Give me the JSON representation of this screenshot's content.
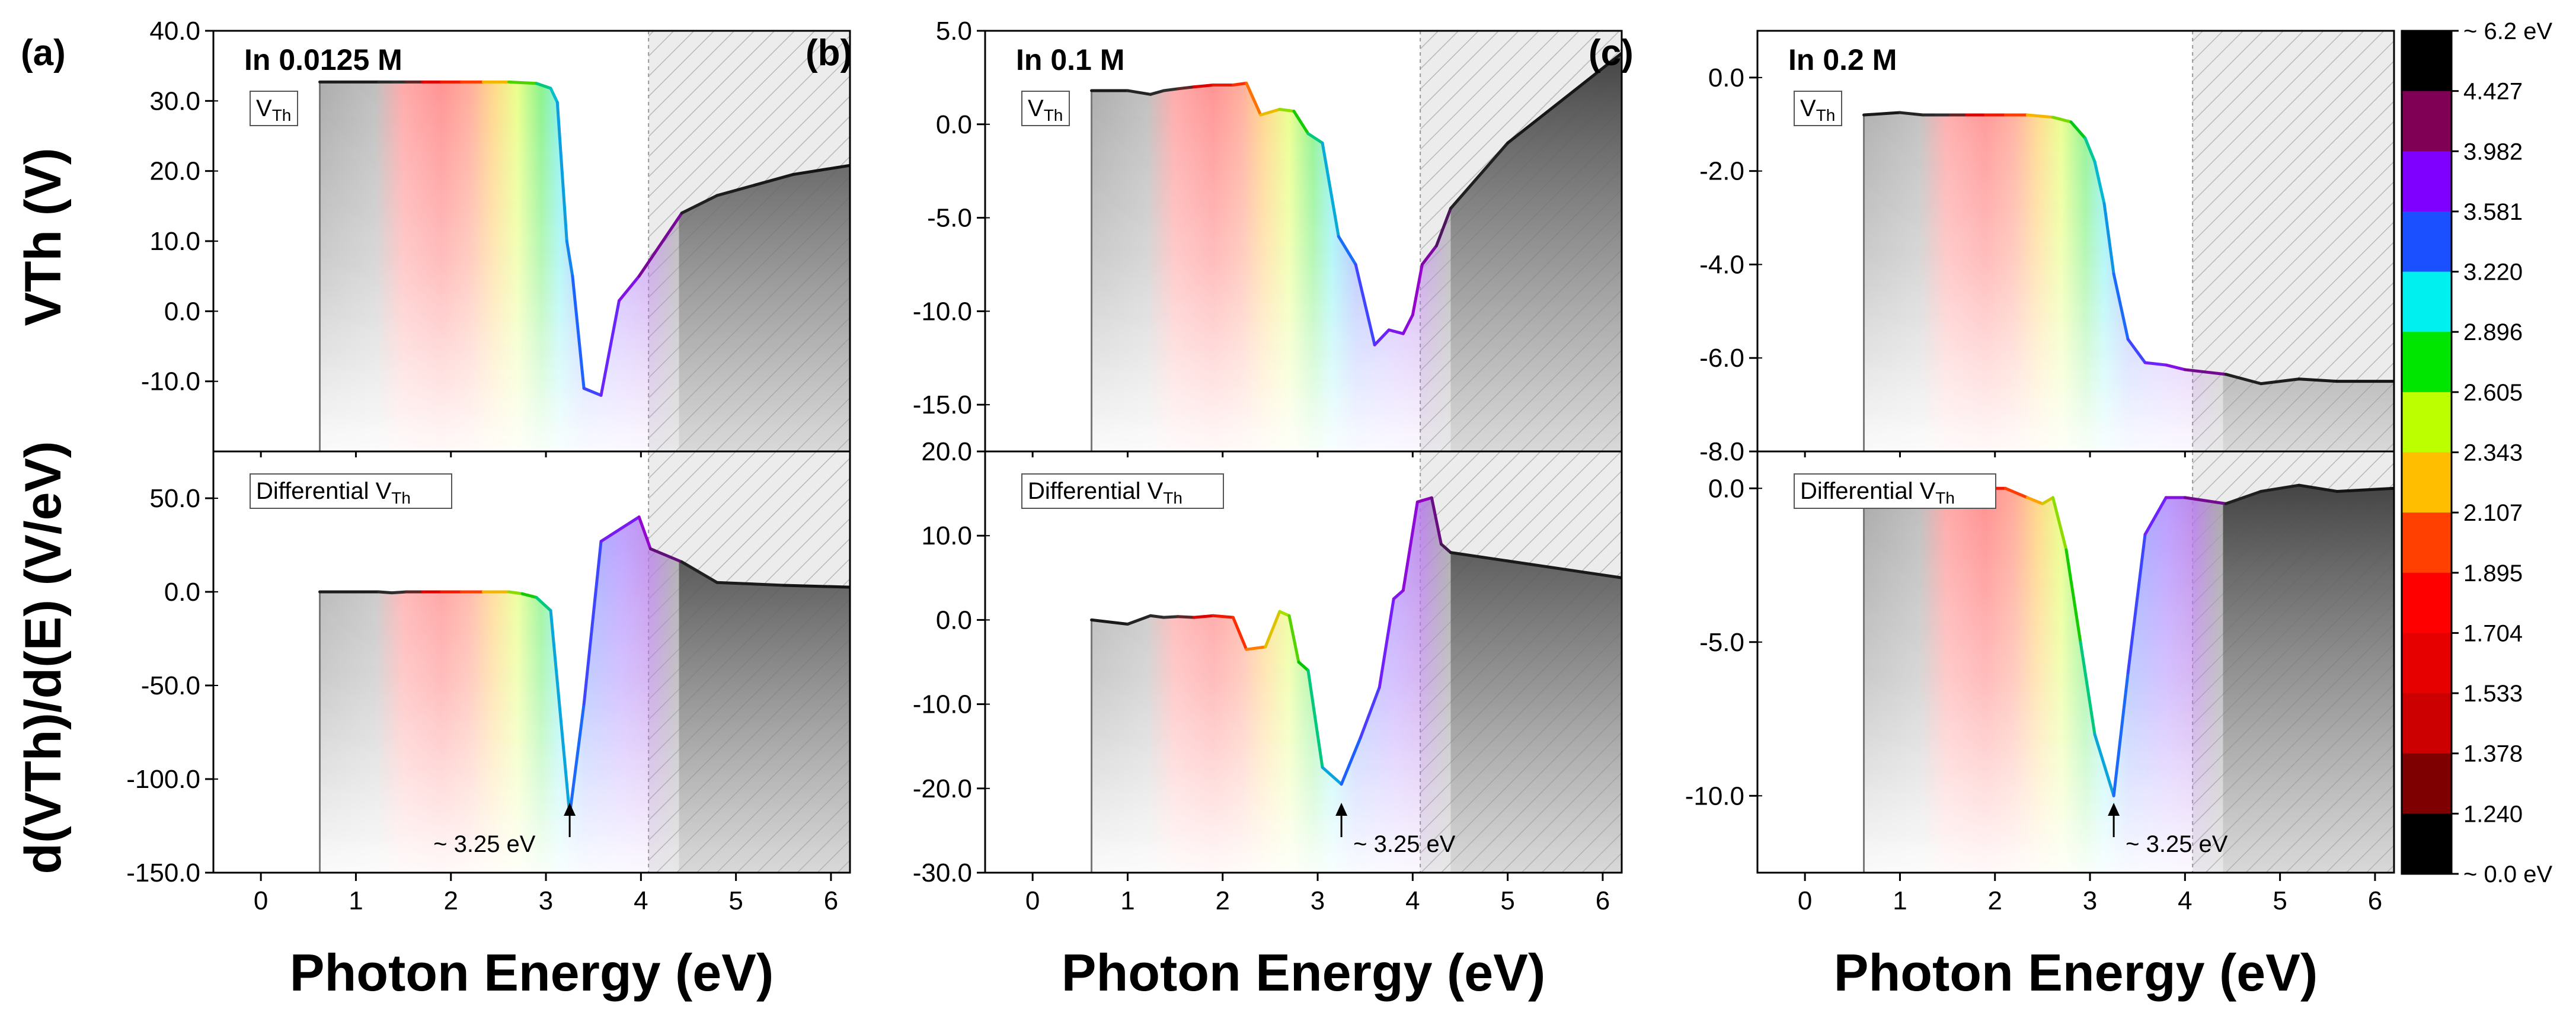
{
  "figure": {
    "xlabel": "Photon Energy (eV)",
    "ylabel_top": "VTh (V)",
    "ylabel_bottom": "d(VTh)/d(E) (V/eV)"
  },
  "panels": [
    {
      "id": "a",
      "label": "(a)",
      "condition": "In 0.0125 M"
    },
    {
      "id": "b",
      "label": "(b)",
      "condition": "In 0.1 M"
    },
    {
      "id": "c",
      "label": "(c)",
      "condition": "In 0.2 M"
    }
  ],
  "box_labels": {
    "vth": "VTh",
    "diff": "Differential VTh"
  },
  "annotation": "~ 3.25 eV",
  "colorbar": {
    "labels": [
      "~ 6.2 eV",
      "4.427",
      "3.982",
      "3.581",
      "3.220",
      "2.896",
      "2.605",
      "2.343",
      "2.107",
      "1.895",
      "1.704",
      "1.533",
      "1.378",
      "1.240",
      "~ 0.0 eV"
    ],
    "colors": [
      "#000000",
      "#7f0055",
      "#7f00ff",
      "#1a50ff",
      "#00f0f0",
      "#00e600",
      "#bbff00",
      "#ffbf00",
      "#ff4000",
      "#ff0000",
      "#e60000",
      "#cc0000",
      "#7f0000",
      "#000000"
    ]
  },
  "spectrum_stops": [
    {
      "e": 0.6,
      "color": "#9e9e9e"
    },
    {
      "e": 1.2,
      "color": "#b4b4b4"
    },
    {
      "e": 1.5,
      "color": "#ff9b9b"
    },
    {
      "e": 1.9,
      "color": "#ff8282"
    },
    {
      "e": 2.2,
      "color": "#ffa08c"
    },
    {
      "e": 2.45,
      "color": "#ffd278"
    },
    {
      "e": 2.7,
      "color": "#e6ff78"
    },
    {
      "e": 2.95,
      "color": "#78f078"
    },
    {
      "e": 3.15,
      "color": "#78f0f0"
    },
    {
      "e": 3.4,
      "color": "#8aa4ff"
    },
    {
      "e": 3.8,
      "color": "#b08cff"
    },
    {
      "e": 4.1,
      "color": "#b478e6"
    },
    {
      "e": 4.4,
      "color": "#a0a0a0"
    }
  ],
  "chart_data": [
    {
      "type": "line",
      "panel": "(a)",
      "title": "In 0.0125 M",
      "subplot": "VTh",
      "xlabel": "Photon Energy (eV)",
      "ylabel": "VTh (V)",
      "xlim": [
        -0.5,
        6.2
      ],
      "ylim": [
        -20,
        40
      ],
      "xticks": [
        0,
        1,
        2,
        3,
        4,
        5,
        6
      ],
      "yticks": [
        -10.0,
        0.0,
        10.0,
        20.0,
        30.0,
        40.0
      ],
      "ytick_labels": [
        "-10.0",
        "0.0",
        "10.0",
        "20.0",
        "30.0",
        "40.0"
      ],
      "hatch_from": 4.08,
      "x": [
        0.62,
        1.24,
        1.38,
        1.53,
        1.7,
        1.9,
        2.11,
        2.34,
        2.61,
        2.9,
        3.05,
        3.12,
        3.22,
        3.28,
        3.4,
        3.58,
        3.77,
        3.98,
        4.43,
        4.8,
        5.2,
        5.6,
        6.2
      ],
      "y": [
        32.7,
        32.7,
        32.7,
        32.7,
        32.7,
        32.7,
        32.7,
        32.7,
        32.7,
        32.5,
        31.8,
        29.8,
        10.0,
        5.0,
        -11.0,
        -12.0,
        1.5,
        5.0,
        14.0,
        16.5,
        18.0,
        19.5,
        20.8
      ]
    },
    {
      "type": "line",
      "panel": "(a)",
      "title": "In 0.0125 M",
      "subplot": "Differential VTh",
      "xlabel": "Photon Energy (eV)",
      "ylabel": "d(VTh)/d(E) (V/eV)",
      "xlim": [
        -0.5,
        6.2
      ],
      "ylim": [
        -150,
        75
      ],
      "xticks": [
        0,
        1,
        2,
        3,
        4,
        5,
        6
      ],
      "yticks": [
        -150,
        -100,
        -50,
        0,
        50
      ],
      "ytick_labels": [
        "-150.0",
        "-100.0",
        "-50.0",
        "0.0",
        "50.0"
      ],
      "hatch_from": 4.08,
      "annotation_x": 3.25,
      "x": [
        0.62,
        1.24,
        1.38,
        1.53,
        1.7,
        1.9,
        2.11,
        2.34,
        2.61,
        2.75,
        2.9,
        3.05,
        3.25,
        3.4,
        3.58,
        3.98,
        4.1,
        4.43,
        4.8,
        5.5,
        6.2
      ],
      "y": [
        0,
        0,
        -0.5,
        0,
        0,
        0,
        0,
        0,
        0,
        -1,
        -3,
        -10,
        -119,
        -60,
        27,
        40,
        23,
        16,
        5,
        3.5,
        2.5
      ]
    },
    {
      "type": "line",
      "panel": "(b)",
      "title": "In 0.1 M",
      "subplot": "VTh",
      "xlabel": "Photon Energy (eV)",
      "ylabel": "VTh (V)",
      "xlim": [
        -0.5,
        6.2
      ],
      "ylim": [
        -17.5,
        5.0
      ],
      "xticks": [
        0,
        1,
        2,
        3,
        4,
        5,
        6
      ],
      "yticks": [
        -15.0,
        -10.0,
        -5.0,
        0.0,
        5.0
      ],
      "ytick_labels": [
        "-15.0",
        "-10.0",
        "-5.0",
        "0.0",
        "5.0"
      ],
      "hatch_from": 4.08,
      "x": [
        0.62,
        1.0,
        1.24,
        1.38,
        1.53,
        1.7,
        1.9,
        2.11,
        2.25,
        2.4,
        2.6,
        2.75,
        2.9,
        3.05,
        3.22,
        3.4,
        3.6,
        3.75,
        3.9,
        4.0,
        4.1,
        4.25,
        4.4,
        5.0,
        6.2
      ],
      "y": [
        1.8,
        1.8,
        1.6,
        1.8,
        1.9,
        2.0,
        2.1,
        2.1,
        2.2,
        0.5,
        0.8,
        0.7,
        -0.5,
        -1.0,
        -6.0,
        -7.5,
        -11.8,
        -11.0,
        -11.2,
        -10.2,
        -7.5,
        -6.5,
        -4.5,
        -1.0,
        3.8
      ]
    },
    {
      "type": "line",
      "panel": "(b)",
      "title": "In 0.1 M",
      "subplot": "Differential VTh",
      "xlabel": "Photon Energy (eV)",
      "ylabel": "d(VTh)/d(E) (V/eV)",
      "xlim": [
        -0.5,
        6.2
      ],
      "ylim": [
        -30,
        20
      ],
      "xticks": [
        0,
        1,
        2,
        3,
        4,
        5,
        6
      ],
      "yticks": [
        -30,
        -20,
        -10,
        0,
        10,
        20
      ],
      "ytick_labels": [
        "-30.0",
        "-20.0",
        "-10.0",
        "0.0",
        "10.0",
        "20.0"
      ],
      "hatch_from": 4.08,
      "annotation_x": 3.25,
      "x": [
        0.62,
        1.0,
        1.24,
        1.38,
        1.53,
        1.7,
        1.9,
        2.11,
        2.25,
        2.45,
        2.6,
        2.7,
        2.8,
        2.9,
        3.05,
        3.25,
        3.45,
        3.65,
        3.8,
        3.9,
        4.05,
        4.2,
        4.3,
        4.4,
        6.2
      ],
      "y": [
        0,
        -0.5,
        0.5,
        0.3,
        0.4,
        0.3,
        0.5,
        0.3,
        -3.5,
        -3.2,
        1.0,
        0.5,
        -5.0,
        -6.0,
        -17.5,
        -19.5,
        -14.0,
        -8.0,
        2.5,
        3.5,
        14.0,
        14.5,
        9.0,
        8.0,
        5.0
      ]
    },
    {
      "type": "line",
      "panel": "(c)",
      "title": "In 0.2 M",
      "subplot": "VTh",
      "xlabel": "Photon Energy (eV)",
      "ylabel": "VTh (V)",
      "xlim": [
        -0.5,
        6.2
      ],
      "ylim": [
        -8.0,
        1.0
      ],
      "xticks": [
        0,
        1,
        2,
        3,
        4,
        5,
        6
      ],
      "yticks": [
        -8.0,
        -6.0,
        -4.0,
        -2.0,
        0.0
      ],
      "ytick_labels": [
        "-8.0",
        "-6.0",
        "-4.0",
        "-2.0",
        "0.0"
      ],
      "hatch_from": 4.08,
      "x": [
        0.62,
        1.0,
        1.24,
        1.38,
        1.53,
        1.7,
        1.9,
        2.11,
        2.34,
        2.61,
        2.8,
        2.95,
        3.05,
        3.15,
        3.25,
        3.4,
        3.58,
        3.8,
        4.0,
        4.43,
        4.8,
        5.2,
        5.6,
        6.2
      ],
      "y": [
        -0.8,
        -0.75,
        -0.8,
        -0.8,
        -0.8,
        -0.8,
        -0.8,
        -0.8,
        -0.8,
        -0.85,
        -0.95,
        -1.3,
        -1.8,
        -2.7,
        -4.2,
        -5.6,
        -6.1,
        -6.15,
        -6.25,
        -6.35,
        -6.55,
        -6.45,
        -6.5,
        -6.5
      ]
    },
    {
      "type": "line",
      "panel": "(c)",
      "title": "In 0.2 M",
      "subplot": "Differential VTh",
      "xlabel": "Photon Energy (eV)",
      "ylabel": "d(VTh)/d(E) (V/eV)",
      "xlim": [
        -0.5,
        6.2
      ],
      "ylim": [
        -12.5,
        1.2
      ],
      "xticks": [
        0,
        1,
        2,
        3,
        4,
        5,
        6
      ],
      "yticks": [
        -10.0,
        -5.0,
        0.0
      ],
      "ytick_labels": [
        "-10.0",
        "-5.0",
        "0.0"
      ],
      "hatch_from": 4.08,
      "annotation_x": 3.25,
      "x": [
        0.62,
        0.9,
        1.1,
        1.2,
        1.24,
        1.38,
        1.53,
        1.7,
        1.9,
        2.11,
        2.34,
        2.5,
        2.61,
        2.75,
        2.9,
        3.05,
        3.25,
        3.4,
        3.58,
        3.8,
        4.0,
        4.43,
        4.8,
        5.2,
        5.6,
        6.2
      ],
      "y": [
        0.1,
        0,
        -0.2,
        -0.3,
        0,
        -0.05,
        0,
        0,
        0,
        0,
        -0.3,
        -0.5,
        -0.3,
        -2.0,
        -5.0,
        -8.0,
        -10.0,
        -6.0,
        -1.5,
        -0.3,
        -0.3,
        -0.5,
        -0.1,
        0.1,
        -0.1,
        0.0
      ]
    }
  ]
}
